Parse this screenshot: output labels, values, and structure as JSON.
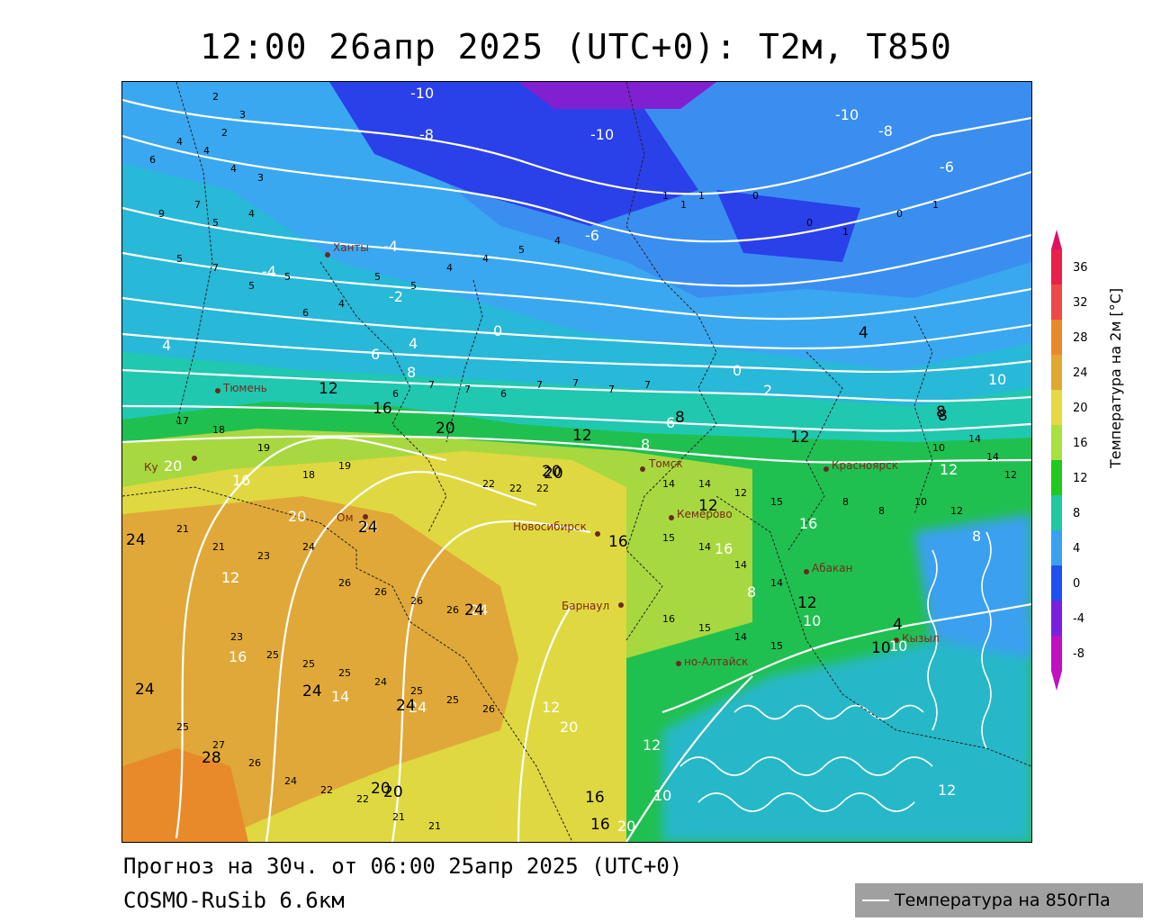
{
  "title": "12:00 26апр 2025 (UTC+0): T2м, T850",
  "footer": {
    "forecast": "Прогноз на 30ч. от 06:00 25апр 2025 (UTC+0)",
    "model": "COSMO-RuSib 6.6км"
  },
  "legend": {
    "line_label": "Температура на 850гПа"
  },
  "colorbar": {
    "label": "Температура на 2м [°C]",
    "ticks": [
      "36",
      "32",
      "28",
      "24",
      "20",
      "16",
      "12",
      "8",
      "4",
      "0",
      "-4",
      "-8"
    ],
    "colors": [
      "#e8204a",
      "#f04848",
      "#e88a2a",
      "#e0a830",
      "#e6d840",
      "#a8e040",
      "#20c820",
      "#20c8a0",
      "#3aa0f0",
      "#2050f0",
      "#7a20e0",
      "#c010c0"
    ]
  },
  "cities": [
    {
      "name": "Ханты"
    },
    {
      "name": "Тюмень"
    },
    {
      "name": "Ку"
    },
    {
      "name": "Ом"
    },
    {
      "name": "Новосибирск"
    },
    {
      "name": "Барнаул"
    },
    {
      "name": "Томск"
    },
    {
      "name": "Кемерово"
    },
    {
      "name": "Красноярск"
    },
    {
      "name": "Абакан"
    },
    {
      "name": "Кызыл"
    },
    {
      "name": "но-Алтайск"
    }
  ],
  "t850_labels": [
    "-10",
    "-8",
    "-10",
    "-10",
    "-8",
    "-6",
    "-6",
    "-4",
    "-4",
    "-2",
    "0",
    "0",
    "2",
    "4",
    "4",
    "6",
    "6",
    "8",
    "8",
    "10",
    "10",
    "12",
    "12",
    "12",
    "16",
    "16",
    "20",
    "20",
    "20",
    "20",
    "24",
    "24",
    "24",
    "16",
    "16",
    "14",
    "12",
    "12",
    "8",
    "8",
    "10",
    "10",
    "12"
  ],
  "t2m_labels": [
    "12",
    "16",
    "20",
    "20",
    "24",
    "24",
    "24",
    "24",
    "28",
    "20",
    "16",
    "12",
    "12",
    "8",
    "8",
    "12",
    "16",
    "16",
    "20",
    "24",
    "24",
    "20",
    "12",
    "8",
    "4",
    "4",
    "10"
  ]
}
